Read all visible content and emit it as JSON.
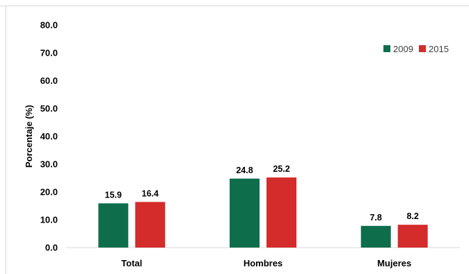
{
  "chart_data": {
    "type": "bar",
    "title": "",
    "xlabel": "",
    "ylabel": "Porcentaje (%)",
    "ylim": [
      0,
      80
    ],
    "yticks": [
      "0.0",
      "10.0",
      "20.0",
      "30.0",
      "40.0",
      "50.0",
      "60.0",
      "70.0",
      "80.0"
    ],
    "categories": [
      "Total",
      "Hombres",
      "Mujeres"
    ],
    "series": [
      {
        "name": "2009",
        "color": "#0e6e4b",
        "values": [
          15.9,
          24.8,
          7.8
        ],
        "labels": [
          "15.9",
          "24.8",
          "7.8"
        ]
      },
      {
        "name": "2015",
        "color": "#d42b2b",
        "values": [
          16.4,
          25.2,
          8.2
        ],
        "labels": [
          "16.4",
          "25.2",
          "8.2"
        ]
      }
    ],
    "grid": false,
    "legend_position": "top-right"
  }
}
